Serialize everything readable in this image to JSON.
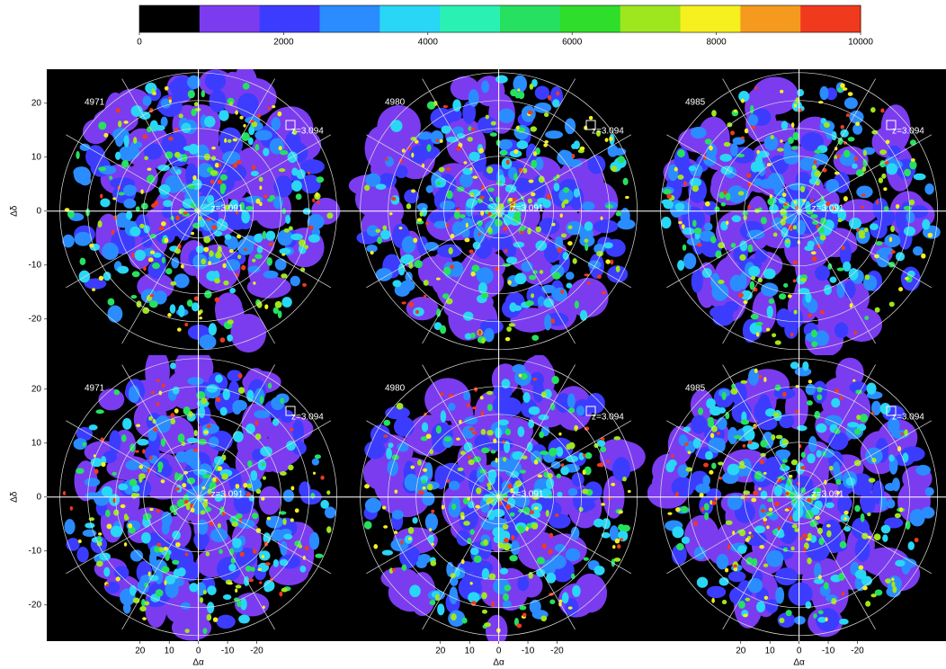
{
  "chart_data": {
    "type": "heatmap",
    "colorbar": {
      "lim": [
        0,
        10000
      ],
      "ticks": [
        0,
        2000,
        4000,
        6000,
        8000,
        10000
      ],
      "colors": [
        "#000000",
        "#7b3cf0",
        "#3c3cff",
        "#2a8cff",
        "#29d6f5",
        "#2af0b4",
        "#26e060",
        "#2ede2a",
        "#9ee61e",
        "#f5f01e",
        "#f59a1e",
        "#f03a1e"
      ]
    },
    "xlabel": "Δα",
    "ylabel": "Δδ",
    "xlim": [
      52,
      -51
    ],
    "ylim": [
      -26.7,
      26.3
    ],
    "xticks": [
      20,
      10,
      0,
      -10,
      -20
    ],
    "yticks": [
      20,
      10,
      0,
      -10,
      -20
    ],
    "panels": [
      {
        "label": "4971",
        "annotations": [
          "z=3.094",
          "z=3.091"
        ]
      },
      {
        "label": "4980",
        "annotations": [
          "z=3.094",
          "z=3.091"
        ]
      },
      {
        "label": "4985",
        "annotations": [
          "z=3.094",
          "z=3.091"
        ]
      },
      {
        "label": "4971",
        "annotations": [
          "z=3.094",
          "z=3.091"
        ]
      },
      {
        "label": "4980",
        "annotations": [
          "z=3.094",
          "z=3.091"
        ]
      },
      {
        "label": "4985",
        "annotations": [
          "z=3.094",
          "z=3.091"
        ]
      }
    ]
  }
}
